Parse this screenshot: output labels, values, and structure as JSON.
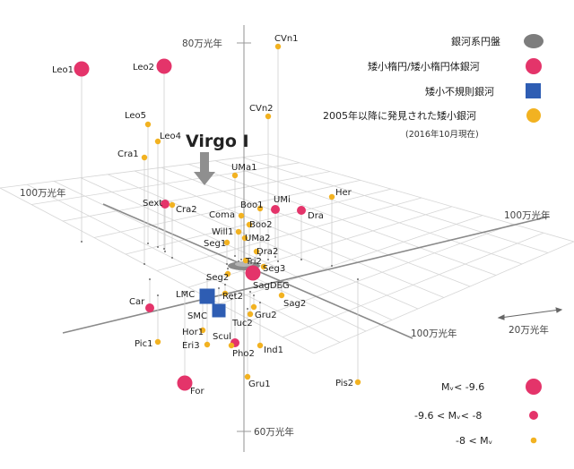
{
  "axis_labels": {
    "z_top": "80万光年",
    "z_bottom": "60万光年",
    "left": "100万光年",
    "right": "100万光年",
    "front": "100万光年",
    "scale": "20万光年"
  },
  "highlight": {
    "label": "Virgo I"
  },
  "legend": {
    "milky_way": "銀河系円盤",
    "dwarf_elliptical": "矮小楕円/矮小楕円体銀河",
    "dwarf_irregular": "矮小不規則銀河",
    "new_dwarfs": "2005年以降に発見された矮小銀河",
    "new_dwarfs_note": "(2016年10月現在)"
  },
  "magnitude_legend": {
    "bright": "Mᵥ< -9.6",
    "medium": "-9.6 < Mᵥ< -8",
    "faint": "-8 < Mᵥ"
  },
  "colors": {
    "bright": "#e4346a",
    "new": "#f2b221",
    "irregular": "#2e5db3",
    "disk": "#8a8a8a"
  },
  "galaxies": [
    {
      "name": "CVn1",
      "type": "new"
    },
    {
      "name": "Leo1",
      "type": "bright"
    },
    {
      "name": "Leo2",
      "type": "bright"
    },
    {
      "name": "Leo5",
      "type": "new"
    },
    {
      "name": "Leo4",
      "type": "new"
    },
    {
      "name": "CVn2",
      "type": "new"
    },
    {
      "name": "Cra1",
      "type": "new"
    },
    {
      "name": "UMa1",
      "type": "new"
    },
    {
      "name": "Her",
      "type": "new"
    },
    {
      "name": "Sext",
      "type": "medium"
    },
    {
      "name": "Cra2",
      "type": "new"
    },
    {
      "name": "Boo1",
      "type": "new"
    },
    {
      "name": "UMi",
      "type": "medium"
    },
    {
      "name": "Dra",
      "type": "medium"
    },
    {
      "name": "Coma",
      "type": "new"
    },
    {
      "name": "Boo2",
      "type": "new"
    },
    {
      "name": "Will1",
      "type": "new"
    },
    {
      "name": "UMa2",
      "type": "new"
    },
    {
      "name": "Seg1",
      "type": "new"
    },
    {
      "name": "Dra2",
      "type": "new"
    },
    {
      "name": "Tri2",
      "type": "new"
    },
    {
      "name": "Seg3",
      "type": "new"
    },
    {
      "name": "Seg2",
      "type": "new"
    },
    {
      "name": "SagDEG",
      "type": "bright"
    },
    {
      "name": "LMC",
      "type": "irregular"
    },
    {
      "name": "Ret2",
      "type": "new"
    },
    {
      "name": "Sag2",
      "type": "new"
    },
    {
      "name": "Car",
      "type": "medium"
    },
    {
      "name": "SMC",
      "type": "irregular"
    },
    {
      "name": "Tuc2",
      "type": "new"
    },
    {
      "name": "Gru2",
      "type": "new"
    },
    {
      "name": "Hor1",
      "type": "new"
    },
    {
      "name": "Scul",
      "type": "medium"
    },
    {
      "name": "Pic1",
      "type": "new"
    },
    {
      "name": "Eri3",
      "type": "new"
    },
    {
      "name": "Pho2",
      "type": "new"
    },
    {
      "name": "Ind1",
      "type": "new"
    },
    {
      "name": "For",
      "type": "bright"
    },
    {
      "name": "Gru1",
      "type": "new"
    },
    {
      "name": "Pis2",
      "type": "new"
    }
  ]
}
